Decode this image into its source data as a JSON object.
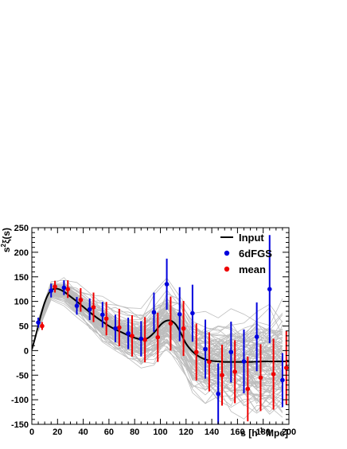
{
  "chart_data": {
    "type": "scatter",
    "xlabel": "s [h",
    "xlabel_sup": "-1",
    "xlabel_end": " Mpc]",
    "ylabel": "s",
    "ylabel_sup": "2",
    "ylabel_end": "ξ(s)",
    "xlim": [
      0,
      200
    ],
    "ylim": [
      -150,
      250
    ],
    "x_ticks": [
      0,
      20,
      40,
      60,
      80,
      100,
      120,
      140,
      160,
      180,
      200
    ],
    "y_ticks": [
      -150,
      -100,
      -50,
      0,
      50,
      100,
      150,
      200,
      250
    ],
    "grid": false,
    "legend_position": "top-right",
    "colors": {
      "input": "#000000",
      "6dfgs": "#0000dd",
      "mean": "#ee0000",
      "mocks": "#bdbdbd"
    },
    "series": [
      {
        "name": "Input",
        "kind": "line",
        "x": [
          0,
          3,
          6,
          10,
          14,
          18,
          22,
          26,
          30,
          35,
          40,
          45,
          50,
          55,
          60,
          65,
          70,
          75,
          80,
          85,
          90,
          95,
          100,
          104,
          108,
          112,
          116,
          120,
          125,
          130,
          135,
          140,
          145,
          150,
          155,
          160,
          170,
          180,
          190,
          200
        ],
        "y": [
          2,
          30,
          62,
          98,
          120,
          126,
          124,
          118,
          110,
          100,
          89,
          78,
          68,
          59,
          50,
          43,
          37,
          31,
          26,
          23,
          25,
          36,
          52,
          60,
          61,
          53,
          35,
          14,
          -2,
          -12,
          -18,
          -21,
          -22,
          -23,
          -23,
          -23,
          -23,
          -22,
          -22,
          -22
        ]
      },
      {
        "name": "6dFGS",
        "kind": "errorbar",
        "x": [
          5,
          15,
          25,
          35,
          45,
          55,
          65,
          75,
          85,
          95,
          105,
          115,
          125,
          135,
          145,
          155,
          165,
          175,
          185,
          195
        ],
        "y": [
          57,
          122,
          128,
          91,
          84,
          73,
          45,
          35,
          24,
          78,
          135,
          74,
          76,
          3,
          -88,
          -3,
          -22,
          28,
          125,
          -60
        ],
        "err": [
          10,
          14,
          15,
          18,
          22,
          26,
          28,
          32,
          36,
          40,
          52,
          55,
          58,
          60,
          62,
          62,
          65,
          70,
          110,
          55
        ]
      },
      {
        "name": "mean",
        "kind": "errorbar",
        "x": [
          8,
          18,
          28,
          38,
          48,
          58,
          68,
          78,
          88,
          98,
          108,
          118,
          128,
          138,
          148,
          158,
          168,
          178,
          188,
          198
        ],
        "y": [
          50,
          130,
          125,
          103,
          88,
          65,
          47,
          30,
          22,
          27,
          55,
          45,
          -3,
          -23,
          -50,
          -43,
          -78,
          -55,
          -48,
          -35
        ],
        "err": [
          8,
          12,
          18,
          24,
          30,
          34,
          38,
          42,
          46,
          50,
          55,
          56,
          58,
          60,
          62,
          64,
          66,
          68,
          72,
          75
        ]
      }
    ]
  }
}
